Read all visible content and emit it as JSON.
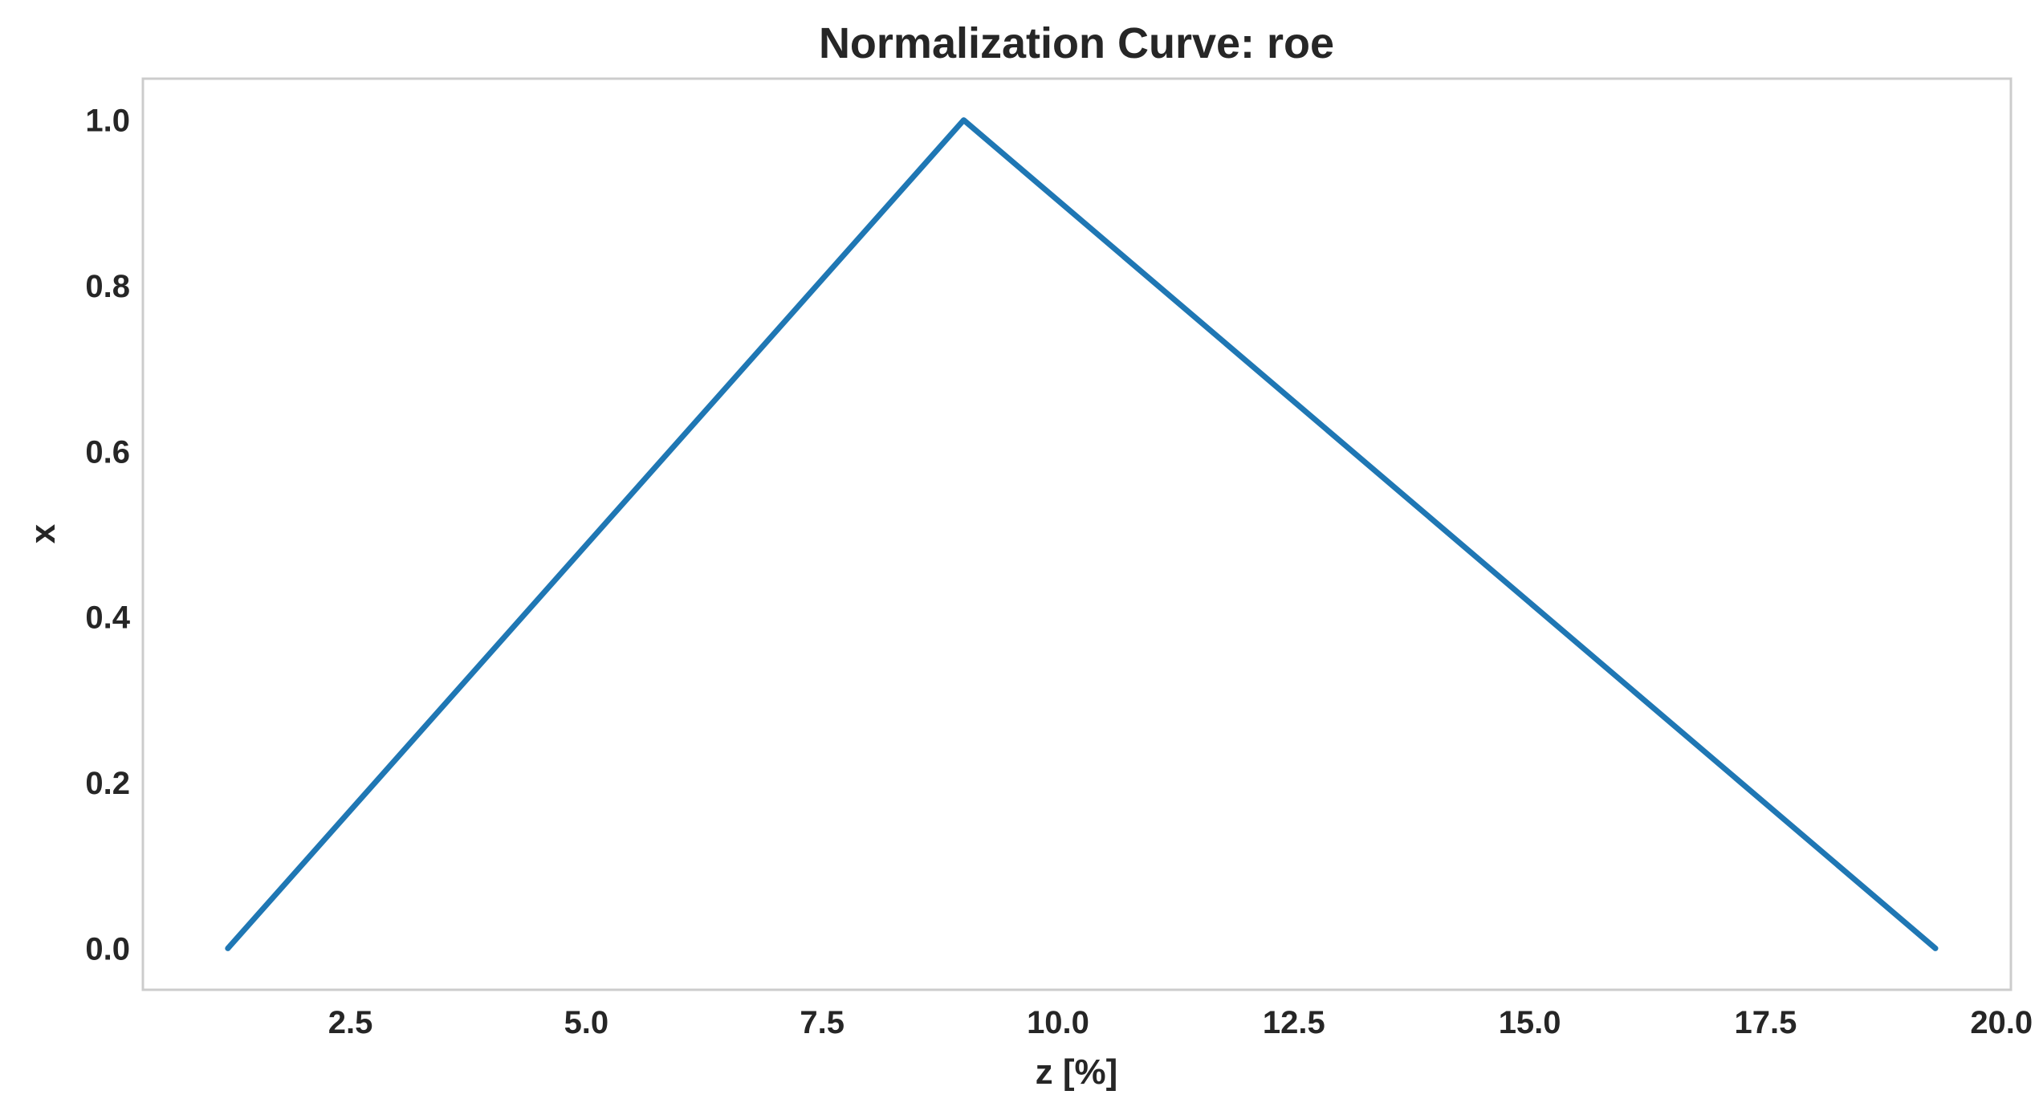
{
  "chart_data": {
    "type": "line",
    "title": "Normalization Curve: roe",
    "xlabel": "z [%]",
    "ylabel": "x",
    "xlim": [
      0.3,
      20.1
    ],
    "ylim": [
      -0.05,
      1.05
    ],
    "xticks": [
      2.5,
      5.0,
      7.5,
      10.0,
      12.5,
      15.0,
      17.5,
      20.0
    ],
    "xtick_labels": [
      "2.5",
      "5.0",
      "7.5",
      "10.0",
      "12.5",
      "15.0",
      "17.5",
      "20.0"
    ],
    "yticks": [
      0.0,
      0.2,
      0.4,
      0.6,
      0.8,
      1.0
    ],
    "ytick_labels": [
      "0.0",
      "0.2",
      "0.4",
      "0.6",
      "0.8",
      "1.0"
    ],
    "grid": false,
    "series": [
      {
        "color": "#1f77b4",
        "x": [
          1.2,
          9.0,
          19.3
        ],
        "y": [
          0.0,
          1.0,
          0.0
        ]
      }
    ]
  }
}
